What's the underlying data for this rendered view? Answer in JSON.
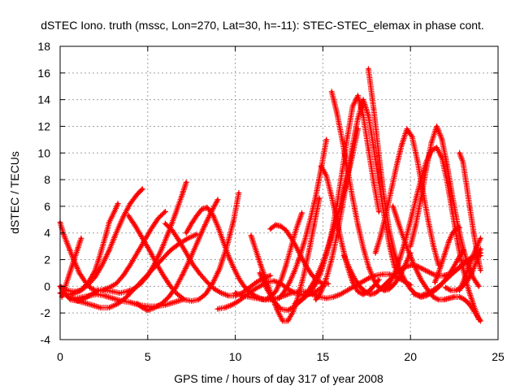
{
  "chart_data": {
    "type": "scatter",
    "title": "dSTEC Iono. truth (mssc, Lon=270, Lat=30, h=-11): STEC-STEC_elemax in phase cont.",
    "xlabel": "GPS time / hours of day 317 of year 2008",
    "ylabel": "dSTEC  / TECUs",
    "xlim": [
      0,
      25
    ],
    "ylim": [
      -4,
      18
    ],
    "xticks": [
      0,
      5,
      10,
      15,
      20,
      25
    ],
    "yticks": [
      -4,
      -2,
      0,
      2,
      4,
      6,
      8,
      10,
      12,
      14,
      16,
      18
    ],
    "grid": true,
    "legend": "none",
    "marker": "+",
    "color": "#ff0000",
    "series": [
      {
        "x": [
          0.0,
          0.4,
          0.8,
          1.2,
          1.6,
          2.0,
          2.4,
          2.8,
          3.2,
          3.6,
          4.0,
          4.4,
          4.7
        ],
        "y": [
          0.0,
          -0.3,
          -0.4,
          -0.3,
          0.1,
          0.7,
          1.6,
          2.7,
          4.0,
          5.2,
          6.2,
          6.9,
          7.3
        ]
      },
      {
        "x": [
          0.0,
          0.2,
          0.4,
          0.6,
          0.8,
          1.0,
          1.2,
          1.4,
          1.6,
          1.8,
          2.0,
          2.2,
          2.4,
          2.6,
          2.8,
          3.1,
          3.3
        ],
        "y": [
          -0.5,
          -0.6,
          -0.6,
          -0.6,
          -0.5,
          -0.4,
          -0.3,
          0.0,
          0.3,
          0.7,
          1.2,
          2.0,
          2.9,
          3.8,
          4.8,
          5.6,
          6.2
        ]
      },
      {
        "x": [
          0.0,
          0.2,
          0.5,
          0.8,
          1.1,
          1.4,
          1.7,
          2.0,
          2.4,
          2.8,
          3.2,
          3.6,
          4.0,
          4.4,
          4.8,
          5.2,
          5.6,
          6.0
        ],
        "y": [
          4.8,
          3.9,
          2.9,
          1.9,
          1.0,
          0.4,
          -0.1,
          -0.3,
          -0.3,
          -0.1,
          0.2,
          0.8,
          1.6,
          2.5,
          3.4,
          4.3,
          5.1,
          5.6
        ]
      },
      {
        "x": [
          0.0,
          0.3,
          0.6,
          1.0,
          1.4,
          1.8,
          2.2,
          2.6,
          3.0,
          3.4,
          3.8,
          4.2,
          4.6,
          5.0,
          5.4,
          5.8,
          6.2,
          6.6,
          7.0,
          7.2
        ],
        "y": [
          0.0,
          -0.6,
          -1.0,
          -1.1,
          -0.9,
          -0.6,
          -0.3,
          -0.3,
          -0.4,
          -0.5,
          -0.4,
          -0.2,
          0.2,
          0.8,
          1.7,
          2.8,
          4.1,
          5.5,
          7.0,
          7.8
        ]
      },
      {
        "x": [
          0.1,
          0.4,
          0.7,
          1.0,
          1.2
        ],
        "y": [
          -0.8,
          0.4,
          1.6,
          2.8,
          3.6
        ]
      },
      {
        "x": [
          0.5,
          0.9,
          1.3,
          1.7,
          2.1,
          2.5,
          3.0,
          3.5,
          4.0,
          4.5,
          5.0,
          5.5,
          6.0,
          6.5,
          7.0
        ],
        "y": [
          -0.8,
          -0.9,
          -0.8,
          -0.7,
          -0.6,
          -0.7,
          -0.9,
          -1.1,
          -1.2,
          -1.4,
          -1.5,
          -1.5,
          -1.4,
          -1.2,
          -1.0
        ]
      },
      {
        "x": [
          0.8,
          1.3,
          1.8,
          2.3,
          2.8,
          3.3,
          3.8,
          4.3,
          4.8,
          5.3,
          5.8,
          6.3,
          6.8,
          7.3,
          7.8
        ],
        "y": [
          -1.0,
          -1.2,
          -1.4,
          -1.6,
          -1.6,
          -1.3,
          -0.8,
          -0.1,
          0.6,
          1.3,
          2.0,
          2.7,
          3.2,
          3.6,
          3.9
        ]
      },
      {
        "x": [
          3.9,
          4.3,
          4.7,
          5.1,
          5.5,
          5.9,
          6.3,
          6.7,
          7.1,
          7.5,
          7.9,
          8.3,
          8.7,
          9.1,
          9.5,
          9.9,
          10.2
        ],
        "y": [
          5.3,
          4.5,
          3.6,
          2.7,
          1.7,
          0.8,
          0.0,
          -0.6,
          -1.0,
          -1.1,
          -1.0,
          -0.6,
          0.2,
          1.3,
          2.9,
          4.9,
          7.0
        ]
      },
      {
        "x": [
          4.4,
          4.7,
          5.0,
          5.4,
          5.8,
          6.2,
          6.6,
          7.0,
          7.4,
          7.8,
          8.2,
          8.6,
          9.0
        ],
        "y": [
          -1.3,
          -1.6,
          -1.8,
          -1.6,
          -1.3,
          -0.8,
          -0.1,
          0.9,
          2.0,
          3.2,
          4.4,
          5.5,
          6.5
        ]
      },
      {
        "x": [
          6.0,
          6.4,
          6.8,
          7.2,
          7.6,
          8.0,
          8.4,
          8.8,
          9.2,
          9.6,
          10.0,
          10.4,
          10.8,
          11.2,
          11.6,
          12.0
        ],
        "y": [
          4.7,
          4.2,
          3.4,
          2.5,
          1.6,
          0.9,
          0.3,
          -0.2,
          -0.5,
          -0.7,
          -0.7,
          -0.5,
          -0.1,
          0.3,
          0.6,
          0.8
        ]
      },
      {
        "x": [
          7.2,
          7.5,
          7.8,
          8.1,
          8.4,
          8.7,
          9.0,
          9.3,
          9.6,
          9.9,
          10.2,
          10.5,
          10.8,
          11.1,
          11.4,
          11.7,
          12.0,
          12.3,
          12.6,
          12.9,
          13.2,
          13.5,
          13.8
        ],
        "y": [
          4.0,
          4.7,
          5.3,
          5.8,
          5.9,
          5.4,
          4.5,
          3.4,
          2.3,
          1.4,
          0.6,
          0.0,
          -0.4,
          -0.7,
          -0.9,
          -1.0,
          -0.8,
          -0.4,
          0.4,
          1.6,
          3.0,
          4.4,
          5.5
        ]
      },
      {
        "x": [
          9.0,
          9.4,
          9.8,
          10.2,
          10.6,
          11.0,
          11.4,
          11.8,
          12.2,
          12.6,
          13.0,
          13.4,
          13.8,
          14.2,
          14.6,
          15.0
        ],
        "y": [
          -1.7,
          -1.6,
          -1.4,
          -1.1,
          -0.7,
          -0.3,
          0.0,
          0.3,
          0.4,
          0.2,
          -0.2,
          -0.5,
          -0.6,
          -0.6,
          -0.4,
          0.0
        ]
      },
      {
        "x": [
          10.0,
          10.4,
          10.8,
          11.2,
          11.6,
          12.0,
          12.4,
          12.8,
          13.2,
          13.6,
          14.0,
          14.4,
          14.8,
          15.2,
          15.6,
          16.0,
          16.4,
          16.8,
          17.2,
          17.6,
          18.0,
          18.4,
          18.8,
          19.2,
          19.6,
          20.0
        ],
        "y": [
          -0.5,
          -0.7,
          -0.8,
          -0.9,
          -1.0,
          -1.0,
          -0.9,
          -0.7,
          -0.5,
          -0.4,
          -0.4,
          -0.6,
          -0.8,
          -0.9,
          -0.8,
          -0.6,
          -0.3,
          0.0,
          0.3,
          0.6,
          0.8,
          0.9,
          0.9,
          0.7,
          0.4,
          0.1
        ]
      },
      {
        "x": [
          10.9,
          11.2,
          11.5,
          11.8,
          12.1,
          12.4,
          12.7,
          13.0,
          13.3,
          13.6,
          13.9,
          14.2,
          14.5,
          14.8
        ],
        "y": [
          3.8,
          2.6,
          1.4,
          0.3,
          -0.8,
          -1.8,
          -2.6,
          -2.6,
          -1.9,
          -0.7,
          0.8,
          2.6,
          4.6,
          6.6
        ]
      },
      {
        "x": [
          11.4,
          11.8,
          12.2,
          12.6,
          13.0,
          13.4,
          13.8,
          14.2,
          14.6,
          15.0,
          15.4,
          15.8,
          16.2,
          16.6,
          17.0
        ],
        "y": [
          1.0,
          -0.2,
          -1.1,
          -1.7,
          -1.8,
          -1.5,
          -1.0,
          -0.3,
          0.6,
          1.8,
          3.3,
          5.1,
          7.1,
          9.3,
          11.8
        ]
      },
      {
        "x": [
          12.0,
          12.3,
          12.6,
          12.9,
          13.2,
          13.5,
          13.8,
          14.1,
          14.4,
          14.7,
          15.0,
          15.3
        ],
        "y": [
          4.3,
          4.6,
          4.5,
          4.2,
          3.6,
          2.9,
          2.1,
          1.4,
          0.8,
          0.4,
          0.2,
          0.2
        ]
      },
      {
        "x": [
          12.5,
          12.8,
          13.1,
          13.4,
          13.7,
          14.0,
          14.3,
          14.6,
          14.9,
          15.2
        ],
        "y": [
          -0.9,
          -0.4,
          0.3,
          1.2,
          2.3,
          3.6,
          5.1,
          6.8,
          8.8,
          11.0
        ]
      },
      {
        "x": [
          13.4,
          13.7,
          14.0,
          14.3,
          14.6,
          14.9,
          15.2,
          15.5,
          15.8,
          16.1,
          16.4,
          16.7,
          17.0,
          17.3,
          17.6,
          17.9,
          18.2
        ],
        "y": [
          -1.3,
          -1.1,
          -0.8,
          -0.4,
          0.2,
          1.1,
          2.4,
          4.0,
          6.1,
          8.6,
          11.2,
          13.5,
          14.3,
          12.8,
          10.3,
          7.8,
          5.6
        ]
      },
      {
        "x": [
          14.6,
          14.9,
          15.2,
          15.5,
          15.8,
          16.1,
          16.4,
          16.7,
          17.0,
          17.3,
          17.6,
          17.9,
          18.2,
          18.5,
          18.8,
          19.1
        ],
        "y": [
          -1.0,
          -0.4,
          0.6,
          2.0,
          3.8,
          5.9,
          8.2,
          10.6,
          12.6,
          14.0,
          12.8,
          10.4,
          7.8,
          5.3,
          3.1,
          1.4
        ]
      },
      {
        "x": [
          14.9,
          15.2,
          15.5,
          15.8,
          16.1,
          16.4,
          16.7,
          17.0,
          17.3,
          17.6,
          17.9,
          18.2
        ],
        "y": [
          9.0,
          8.3,
          6.7,
          4.9,
          3.1,
          1.5,
          0.3,
          -0.4,
          -0.6,
          -0.4,
          0.0,
          0.5
        ]
      },
      {
        "x": [
          15.5,
          15.8,
          16.1,
          16.4,
          16.7,
          17.0,
          17.3,
          17.6,
          17.9,
          18.2,
          18.5,
          18.8,
          19.1,
          19.4,
          19.7,
          20.0
        ],
        "y": [
          14.6,
          13.0,
          11.0,
          8.8,
          6.6,
          4.6,
          2.9,
          1.5,
          0.5,
          -0.1,
          -0.3,
          -0.2,
          0.2,
          0.8,
          1.6,
          2.5
        ]
      },
      {
        "x": [
          16.2,
          16.5,
          16.8,
          17.1,
          17.4,
          17.7,
          18.0,
          18.3,
          18.6,
          18.9,
          19.2,
          19.5,
          19.8,
          20.1,
          20.4,
          20.7,
          21.0,
          21.3,
          21.6,
          21.9,
          22.2,
          22.5,
          22.8,
          23.1,
          23.4,
          23.7,
          24.0
        ],
        "y": [
          2.3,
          1.4,
          0.6,
          0.0,
          -0.4,
          -0.6,
          -0.5,
          -0.2,
          0.2,
          0.6,
          1.0,
          1.3,
          1.5,
          1.6,
          1.5,
          1.3,
          1.1,
          0.9,
          0.8,
          0.8,
          0.9,
          1.1,
          1.4,
          1.7,
          2.0,
          2.2,
          2.3
        ]
      },
      {
        "x": [
          17.6,
          17.9,
          18.2,
          18.5,
          18.8,
          19.1,
          19.4,
          19.7,
          20.0,
          20.3,
          20.6,
          20.9,
          21.2,
          21.5,
          21.8,
          22.1,
          22.4,
          22.7,
          23.0
        ],
        "y": [
          16.3,
          13.3,
          9.8,
          6.6,
          4.1,
          2.4,
          1.2,
          0.4,
          -0.2,
          -0.6,
          -0.8,
          -0.7,
          -0.5,
          -0.2,
          0.2,
          0.7,
          1.3,
          2.0,
          2.7
        ]
      },
      {
        "x": [
          18.0,
          18.3,
          18.6,
          18.9,
          19.2,
          19.5,
          19.8,
          20.1,
          20.4,
          20.7,
          21.0,
          21.3,
          21.6
        ],
        "y": [
          2.5,
          3.8,
          5.4,
          7.2,
          9.0,
          10.6,
          11.8,
          11.2,
          9.4,
          7.2,
          5.0,
          3.1,
          1.6
        ]
      },
      {
        "x": [
          18.5,
          18.8,
          19.1,
          19.4,
          19.7,
          20.0,
          20.3,
          20.6,
          20.9,
          21.2,
          21.5,
          21.8,
          22.1,
          22.4,
          22.7,
          23.0,
          23.3,
          23.6,
          23.9
        ],
        "y": [
          -0.3,
          0.2,
          1.0,
          2.1,
          3.4,
          4.9,
          6.5,
          8.0,
          9.3,
          10.2,
          10.4,
          9.6,
          7.8,
          5.5,
          3.2,
          1.3,
          -0.2,
          -1.4,
          -2.5
        ]
      },
      {
        "x": [
          19.0,
          19.4,
          19.8,
          20.2,
          20.6,
          21.0,
          21.3,
          21.6,
          21.9,
          22.2,
          22.5,
          22.8,
          23.1,
          23.4,
          23.7,
          24.0
        ],
        "y": [
          6.0,
          4.4,
          2.9,
          1.6,
          0.5,
          -0.3,
          -0.8,
          -1.0,
          -1.0,
          -0.9,
          -0.8,
          -0.8,
          -1.0,
          -1.4,
          -2.0,
          -2.6
        ]
      },
      {
        "x": [
          20.0,
          20.3,
          20.6,
          20.9,
          21.2,
          21.5,
          21.8,
          22.1,
          22.4,
          22.7,
          23.0,
          23.3,
          23.6,
          23.9
        ],
        "y": [
          3.0,
          4.6,
          6.6,
          8.8,
          10.8,
          12.0,
          11.0,
          9.0,
          6.7,
          4.6,
          2.9,
          1.5,
          0.6,
          0.0
        ]
      },
      {
        "x": [
          20.2,
          20.6,
          21.0,
          21.4,
          21.8,
          22.2,
          22.6,
          23.0,
          23.4,
          23.8,
          24.0
        ],
        "y": [
          -0.6,
          -0.7,
          -0.5,
          -0.2,
          0.2,
          0.7,
          1.2,
          1.7,
          2.1,
          2.4,
          2.5
        ]
      },
      {
        "x": [
          21.4,
          21.6,
          21.8,
          22.0,
          22.2,
          22.4,
          22.6,
          22.8
        ],
        "y": [
          0.3,
          1.0,
          1.8,
          2.6,
          3.4,
          4.0,
          4.3,
          4.4
        ]
      },
      {
        "x": [
          22.0,
          22.3,
          22.6,
          22.9,
          23.2,
          23.5,
          23.8,
          24.0
        ],
        "y": [
          -0.1,
          -0.3,
          -0.3,
          -0.1,
          0.3,
          1.0,
          2.0,
          2.8
        ]
      },
      {
        "x": [
          22.8,
          23.0,
          23.2,
          23.4,
          23.6,
          23.8,
          24.0
        ],
        "y": [
          10.0,
          9.3,
          7.6,
          5.8,
          4.1,
          2.5,
          1.2
        ]
      },
      {
        "x": [
          22.8,
          23.1,
          23.4,
          23.7,
          24.0
        ],
        "y": [
          -0.3,
          0.6,
          1.7,
          2.7,
          3.6
        ]
      }
    ]
  }
}
